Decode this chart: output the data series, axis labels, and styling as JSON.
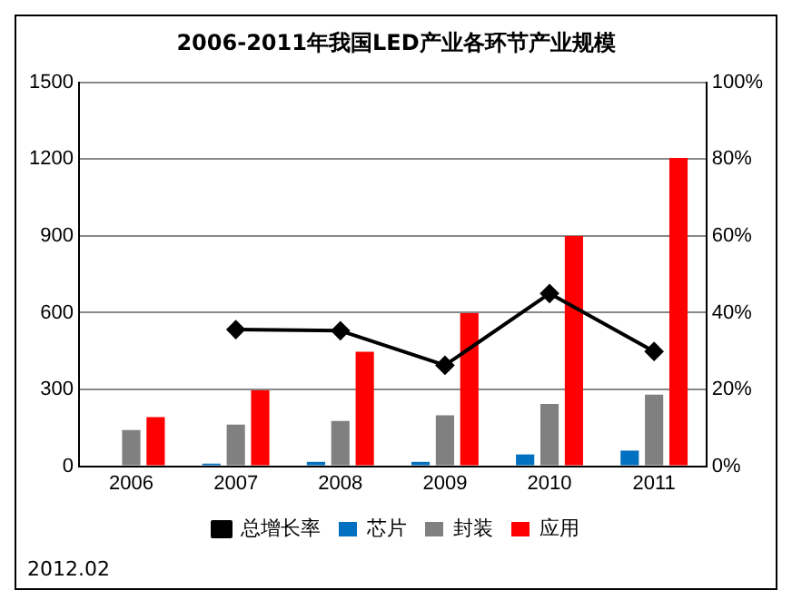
{
  "chart_data": {
    "type": "bar",
    "title": "2006-2011年我国LED产业各环节产业规模",
    "categories": [
      "2006",
      "2007",
      "2008",
      "2009",
      "2010",
      "2011"
    ],
    "series": [
      {
        "name": "芯片",
        "color": "#0070c0",
        "values": [
          null,
          10,
          17,
          17,
          46,
          61
        ]
      },
      {
        "name": "封装",
        "color": "#808080",
        "values": [
          141,
          163,
          177,
          199,
          243,
          280
        ]
      },
      {
        "name": "应用",
        "color": "#ff0000",
        "values": [
          192,
          297,
          447,
          598,
          900,
          1205
        ]
      },
      {
        "name": "总增长率",
        "type": "line",
        "axis": "y2",
        "color": "#000000",
        "values": [
          null,
          35.6,
          35.3,
          26.3,
          45,
          29.9
        ]
      }
    ],
    "ylim": [
      0,
      1500
    ],
    "yticks": [
      0,
      300,
      600,
      900,
      1200,
      1500
    ],
    "y2lim": [
      0,
      100
    ],
    "y2ticks": [
      {
        "value": 0,
        "label": "0%"
      },
      {
        "value": 20,
        "label": "20%"
      },
      {
        "value": 40,
        "label": "40%"
      },
      {
        "value": 60,
        "label": "60%"
      },
      {
        "value": 80,
        "label": "80%"
      },
      {
        "value": 100,
        "label": "100%"
      }
    ],
    "grid": "y",
    "legend": "bottom",
    "marker": "diamond",
    "line_style": "solid",
    "annotations": [
      "2012.02"
    ]
  }
}
